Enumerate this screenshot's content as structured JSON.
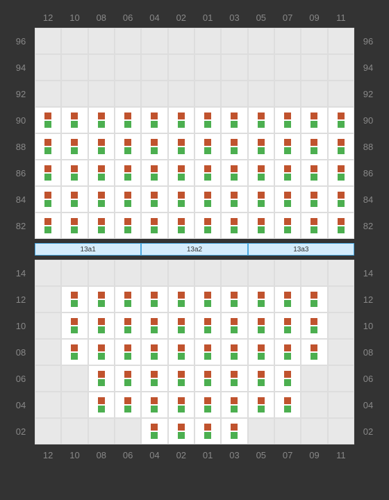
{
  "colors": {
    "seat_top": "#c0532e",
    "seat_bottom": "#4caf50",
    "empty_bg": "#e8e8e8",
    "filled_bg": "#ffffff",
    "grid_border": "#dddddd",
    "label_color": "#888888",
    "zone_bg": "#d4ecfc",
    "zone_border": "#4aa8e0",
    "page_bg": "#333333"
  },
  "columns": [
    "12",
    "10",
    "08",
    "06",
    "04",
    "02",
    "01",
    "03",
    "05",
    "07",
    "09",
    "11"
  ],
  "top_section": {
    "rows": [
      {
        "label": "96",
        "cells": [
          "e",
          "e",
          "e",
          "e",
          "e",
          "e",
          "e",
          "e",
          "e",
          "e",
          "e",
          "e"
        ]
      },
      {
        "label": "94",
        "cells": [
          "e",
          "e",
          "e",
          "e",
          "e",
          "e",
          "e",
          "e",
          "e",
          "e",
          "e",
          "e"
        ]
      },
      {
        "label": "92",
        "cells": [
          "e",
          "e",
          "e",
          "e",
          "e",
          "e",
          "e",
          "e",
          "e",
          "e",
          "e",
          "e"
        ]
      },
      {
        "label": "90",
        "cells": [
          "f",
          "f",
          "f",
          "f",
          "f",
          "f",
          "f",
          "f",
          "f",
          "f",
          "f",
          "f"
        ]
      },
      {
        "label": "88",
        "cells": [
          "f",
          "f",
          "f",
          "f",
          "f",
          "f",
          "f",
          "f",
          "f",
          "f",
          "f",
          "f"
        ]
      },
      {
        "label": "86",
        "cells": [
          "f",
          "f",
          "f",
          "f",
          "f",
          "f",
          "f",
          "f",
          "f",
          "f",
          "f",
          "f"
        ]
      },
      {
        "label": "84",
        "cells": [
          "f",
          "f",
          "f",
          "f",
          "f",
          "f",
          "f",
          "f",
          "f",
          "f",
          "f",
          "f"
        ]
      },
      {
        "label": "82",
        "cells": [
          "f",
          "f",
          "f",
          "f",
          "f",
          "f",
          "f",
          "f",
          "f",
          "f",
          "f",
          "f"
        ]
      }
    ]
  },
  "zones": [
    "13a1",
    "13a2",
    "13a3"
  ],
  "bottom_section": {
    "rows": [
      {
        "label": "14",
        "cells": [
          "e",
          "e",
          "e",
          "e",
          "e",
          "e",
          "e",
          "e",
          "e",
          "e",
          "e",
          "e"
        ]
      },
      {
        "label": "12",
        "cells": [
          "e",
          "f",
          "f",
          "f",
          "f",
          "f",
          "f",
          "f",
          "f",
          "f",
          "f",
          "e"
        ]
      },
      {
        "label": "10",
        "cells": [
          "e",
          "f",
          "f",
          "f",
          "f",
          "f",
          "f",
          "f",
          "f",
          "f",
          "f",
          "e"
        ]
      },
      {
        "label": "08",
        "cells": [
          "e",
          "f",
          "f",
          "f",
          "f",
          "f",
          "f",
          "f",
          "f",
          "f",
          "f",
          "e"
        ]
      },
      {
        "label": "06",
        "cells": [
          "e",
          "e",
          "f",
          "f",
          "f",
          "f",
          "f",
          "f",
          "f",
          "f",
          "e",
          "e"
        ]
      },
      {
        "label": "04",
        "cells": [
          "e",
          "e",
          "f",
          "f",
          "f",
          "f",
          "f",
          "f",
          "f",
          "f",
          "e",
          "e"
        ]
      },
      {
        "label": "02",
        "cells": [
          "e",
          "e",
          "e",
          "e",
          "f",
          "f",
          "f",
          "f",
          "e",
          "e",
          "e",
          "e"
        ]
      }
    ]
  }
}
